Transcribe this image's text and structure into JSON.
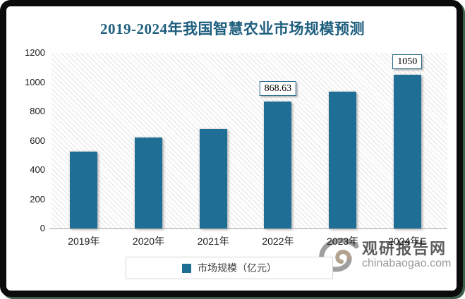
{
  "chart_data": {
    "type": "bar",
    "title": "2019-2024年我国智慧农业市场规模预测",
    "categories": [
      "2019年",
      "2020年",
      "2021年",
      "2022年",
      "2023年",
      "2024年E"
    ],
    "series": [
      {
        "name": "市场规模（亿元）",
        "values": [
          525,
          620,
          680,
          868.63,
          935,
          1050
        ]
      }
    ],
    "value_labels": [
      "",
      "",
      "",
      "868.63",
      "",
      "1050"
    ],
    "ylim": [
      0,
      1200
    ],
    "yticks": [
      0,
      200,
      400,
      600,
      800,
      1000,
      1200
    ],
    "grid": false,
    "legend_position": "bottom",
    "legend_label": "市场规模（亿元）",
    "colors": {
      "bar": "#1F6E96",
      "title": "#1E5E7E",
      "axis_line": "#A3A3A3",
      "label_box_border": "#25678A"
    }
  },
  "watermark": {
    "site_name": "观研报告网",
    "site_url": "chinabaogao.com",
    "logo": "gy-swirl-logo"
  }
}
